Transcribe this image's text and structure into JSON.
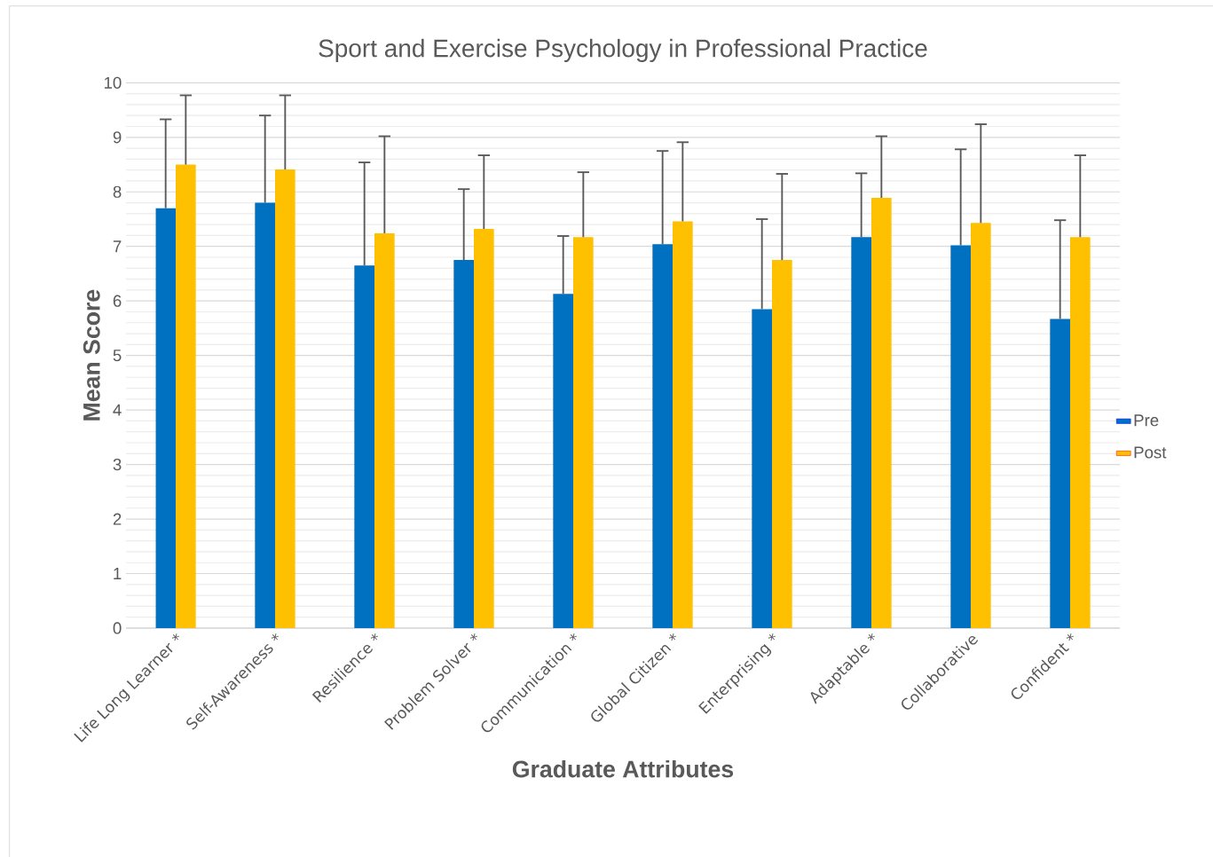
{
  "chart_data": {
    "type": "bar",
    "title": "Sport and Exercise Psychology in Professional Practice",
    "xlabel": "Graduate Attributes",
    "ylabel": "Mean Score",
    "categories": [
      "Life Long Learner *",
      "Self-Awareness *",
      "Resilience *",
      "Problem Solver *",
      "Communication *",
      "Global Citizen *",
      "Enterprising *",
      "Adaptable *",
      "Collaborative",
      "Confident *"
    ],
    "series": [
      {
        "name": "Pre",
        "color": "#0070c0",
        "values": [
          7.7,
          7.8,
          6.65,
          6.75,
          6.13,
          7.04,
          5.85,
          7.17,
          7.02,
          5.67
        ],
        "errors": [
          [
            7.7,
            9.33
          ],
          [
            7.8,
            9.4
          ],
          [
            6.65,
            8.54
          ],
          [
            6.75,
            8.05
          ],
          [
            6.13,
            7.19
          ],
          [
            7.04,
            8.75
          ],
          [
            5.85,
            7.5
          ],
          [
            7.17,
            8.34
          ],
          [
            7.02,
            8.78
          ],
          [
            5.67,
            7.48
          ]
        ]
      },
      {
        "name": "Post",
        "color": "#ffc000",
        "values": [
          8.5,
          8.41,
          7.24,
          7.32,
          7.17,
          7.46,
          6.75,
          7.89,
          7.43,
          7.17
        ],
        "errors": [
          [
            8.5,
            9.77
          ],
          [
            8.41,
            9.77
          ],
          [
            7.24,
            9.02
          ],
          [
            7.32,
            8.67
          ],
          [
            7.17,
            8.36
          ],
          [
            7.46,
            8.91
          ],
          [
            6.75,
            8.33
          ],
          [
            7.89,
            9.02
          ],
          [
            7.43,
            9.24
          ],
          [
            7.17,
            8.67
          ]
        ]
      }
    ],
    "ylim": [
      0,
      10
    ],
    "yticks": [
      0,
      1,
      2,
      3,
      4,
      5,
      6,
      7,
      8,
      9,
      10
    ],
    "grid": true,
    "legend": "right"
  }
}
